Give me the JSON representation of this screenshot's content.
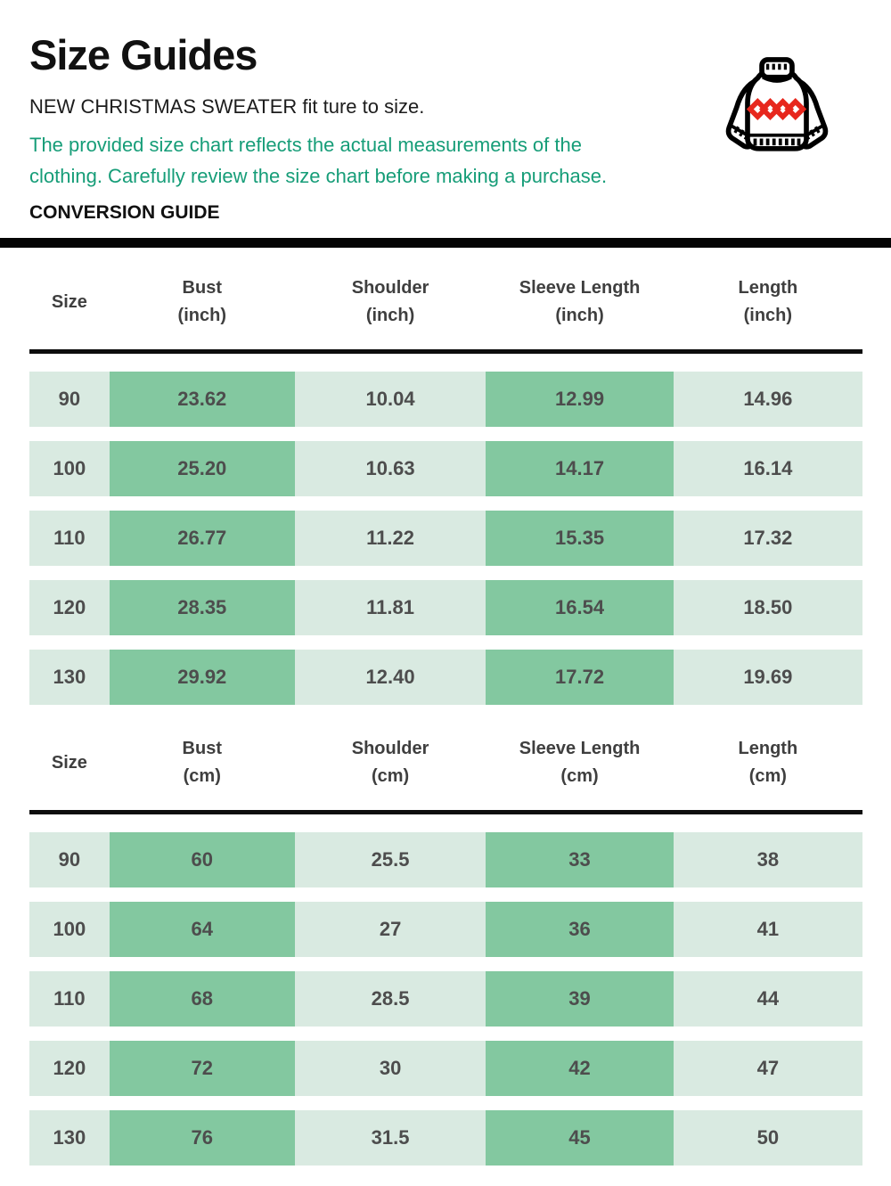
{
  "header": {
    "title": "Size Guides",
    "fit_note": "NEW CHRISTMAS SWEATER fit ture to size.",
    "description": "The provided size chart reflects the actual measurements of the clothing. Carefully review the size chart before making a purchase.",
    "conversion_label": "CONVERSION GUIDE",
    "icon": "sweater-icon"
  },
  "colors": {
    "accent-green": "#169d78",
    "row-light": "#d9eae1",
    "row-dark": "#83c8a0",
    "divider-black": "#050505",
    "header-text": "#3f3f3f",
    "cell-text": "#4d4d4d",
    "icon-red": "#e7271d",
    "icon-black": "#000000"
  },
  "tables": [
    {
      "unit": "inch",
      "columns": [
        "Size",
        "Bust",
        "Shoulder",
        "Sleeve Length",
        "Length"
      ],
      "rows": [
        {
          "size": "90",
          "values": [
            "23.62",
            "10.04",
            "12.99",
            "14.96"
          ]
        },
        {
          "size": "100",
          "values": [
            "25.20",
            "10.63",
            "14.17",
            "16.14"
          ]
        },
        {
          "size": "110",
          "values": [
            "26.77",
            "11.22",
            "15.35",
            "17.32"
          ]
        },
        {
          "size": "120",
          "values": [
            "28.35",
            "11.81",
            "16.54",
            "18.50"
          ]
        },
        {
          "size": "130",
          "values": [
            "29.92",
            "12.40",
            "17.72",
            "19.69"
          ]
        }
      ]
    },
    {
      "unit": "cm",
      "columns": [
        "Size",
        "Bust",
        "Shoulder",
        "Sleeve Length",
        "Length"
      ],
      "rows": [
        {
          "size": "90",
          "values": [
            "60",
            "25.5",
            "33",
            "38"
          ]
        },
        {
          "size": "100",
          "values": [
            "64",
            "27",
            "36",
            "41"
          ]
        },
        {
          "size": "110",
          "values": [
            "68",
            "28.5",
            "39",
            "44"
          ]
        },
        {
          "size": "120",
          "values": [
            "72",
            "30",
            "42",
            "47"
          ]
        },
        {
          "size": "130",
          "values": [
            "76",
            "31.5",
            "45",
            "50"
          ]
        }
      ]
    }
  ]
}
